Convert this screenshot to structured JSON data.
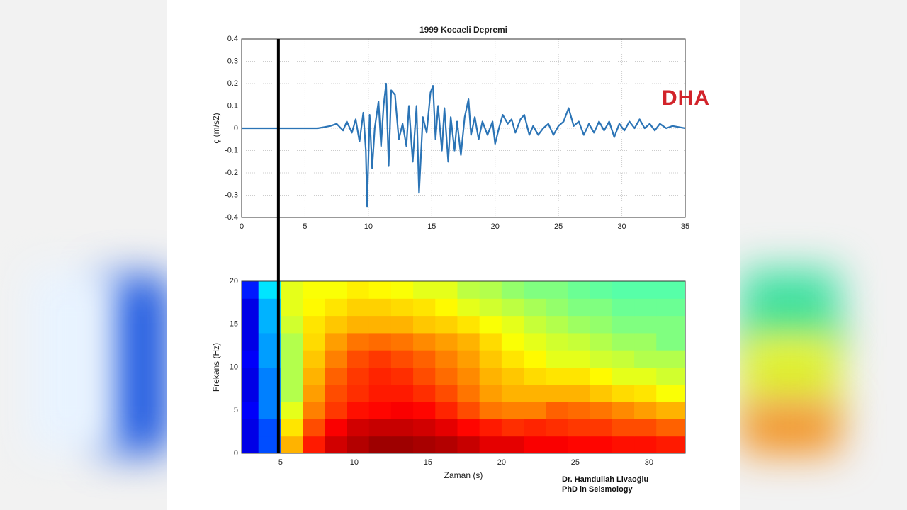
{
  "logo": "DHA",
  "credit": [
    "Dr. Hamdullah Livaoğlu",
    "PhD in Seismology"
  ],
  "chart_data": [
    {
      "type": "line",
      "title": "1999 Kocaeli Depremi",
      "ylabel": "ç (m/s2)",
      "color": "#2b74b6",
      "grid": true,
      "xlim": [
        0,
        35
      ],
      "xticks": [
        0,
        5,
        10,
        15,
        20,
        25,
        30,
        35
      ],
      "ylim": [
        -0.4,
        0.4
      ],
      "yticks": [
        -0.4,
        -0.3,
        -0.2,
        -0.1,
        0,
        0.1,
        0.2,
        0.3,
        0.4
      ],
      "cursor_x": 2.9,
      "x": [
        0,
        6,
        6.5,
        7,
        7.5,
        8,
        8.3,
        8.7,
        9,
        9.3,
        9.6,
        9.8,
        9.9,
        10.1,
        10.3,
        10.5,
        10.8,
        11,
        11.2,
        11.4,
        11.6,
        11.8,
        12.1,
        12.4,
        12.7,
        13,
        13.2,
        13.5,
        13.8,
        14,
        14.3,
        14.6,
        14.9,
        15.1,
        15.3,
        15.5,
        15.8,
        16,
        16.3,
        16.5,
        16.8,
        17,
        17.3,
        17.6,
        17.9,
        18.1,
        18.4,
        18.7,
        19,
        19.4,
        19.8,
        20,
        20.3,
        20.6,
        21,
        21.3,
        21.6,
        22,
        22.3,
        22.7,
        23,
        23.4,
        23.8,
        24.2,
        24.6,
        25,
        25.4,
        25.8,
        26.2,
        26.6,
        27,
        27.4,
        27.8,
        28.2,
        28.6,
        29,
        29.4,
        29.8,
        30.2,
        30.6,
        31,
        31.4,
        31.8,
        32.2,
        32.6,
        33,
        33.5,
        34,
        35
      ],
      "values": [
        0,
        0,
        0.005,
        0.01,
        0.02,
        -0.01,
        0.03,
        -0.02,
        0.04,
        -0.06,
        0.07,
        -0.1,
        -0.35,
        0.06,
        -0.18,
        0,
        0.12,
        -0.08,
        0.1,
        0.2,
        -0.17,
        0.17,
        0.15,
        -0.05,
        0.02,
        -0.08,
        0.1,
        -0.15,
        0.1,
        -0.29,
        0.05,
        -0.02,
        0.16,
        0.19,
        -0.05,
        0.1,
        -0.1,
        0.09,
        -0.15,
        0.05,
        -0.1,
        0.03,
        -0.12,
        0.05,
        0.13,
        -0.03,
        0.05,
        -0.05,
        0.03,
        -0.03,
        0.03,
        -0.07,
        0,
        0.06,
        0.02,
        0.04,
        -0.02,
        0.04,
        0.06,
        -0.03,
        0.01,
        -0.03,
        0,
        0.02,
        -0.03,
        0.01,
        0.03,
        0.09,
        0.01,
        0.03,
        -0.03,
        0.02,
        -0.02,
        0.03,
        -0.01,
        0.03,
        -0.04,
        0.02,
        -0.01,
        0.03,
        0,
        0.04,
        0,
        0.02,
        -0.01,
        0.02,
        0,
        0.01,
        0
      ]
    },
    {
      "type": "heatmap",
      "xlabel": "Zaman (s)",
      "ylabel": "Frekans (Hz)",
      "colormap": "jet",
      "xlim": [
        2.36,
        32.46
      ],
      "xticks": [
        5,
        10,
        15,
        20,
        25,
        30
      ],
      "ylim": [
        0,
        20
      ],
      "yticks": [
        0,
        5,
        10,
        15,
        20
      ],
      "zlim": [
        0,
        1
      ],
      "xbins": [
        2.36,
        3.5,
        5,
        6.5,
        8,
        9.5,
        11,
        12.5,
        14,
        15.5,
        17,
        18.5,
        20,
        21.5,
        23,
        24.5,
        26,
        27.5,
        29,
        30.5,
        32.46
      ],
      "ybins": [
        0,
        2,
        4,
        6,
        8,
        10,
        12,
        14,
        16,
        18,
        20
      ],
      "z": [
        [
          0.1,
          0.2,
          0.7,
          0.85,
          0.92,
          0.95,
          0.97,
          0.97,
          0.96,
          0.95,
          0.93,
          0.9,
          0.9,
          0.88,
          0.88,
          0.87,
          0.87,
          0.86,
          0.86,
          0.85
        ],
        [
          0.1,
          0.2,
          0.65,
          0.8,
          0.88,
          0.92,
          0.93,
          0.93,
          0.92,
          0.9,
          0.87,
          0.85,
          0.83,
          0.84,
          0.83,
          0.82,
          0.82,
          0.8,
          0.8,
          0.78
        ],
        [
          0.12,
          0.25,
          0.6,
          0.75,
          0.82,
          0.86,
          0.87,
          0.88,
          0.87,
          0.84,
          0.8,
          0.76,
          0.75,
          0.75,
          0.78,
          0.77,
          0.76,
          0.74,
          0.72,
          0.7
        ],
        [
          0.1,
          0.25,
          0.55,
          0.72,
          0.8,
          0.83,
          0.85,
          0.85,
          0.83,
          0.8,
          0.76,
          0.72,
          0.7,
          0.7,
          0.7,
          0.7,
          0.68,
          0.66,
          0.65,
          0.62
        ],
        [
          0.1,
          0.25,
          0.55,
          0.7,
          0.78,
          0.82,
          0.84,
          0.83,
          0.8,
          0.77,
          0.74,
          0.7,
          0.68,
          0.66,
          0.65,
          0.65,
          0.63,
          0.6,
          0.6,
          0.58
        ],
        [
          0.12,
          0.28,
          0.55,
          0.68,
          0.75,
          0.8,
          0.82,
          0.8,
          0.78,
          0.75,
          0.72,
          0.68,
          0.65,
          0.63,
          0.6,
          0.6,
          0.58,
          0.57,
          0.55,
          0.55
        ],
        [
          0.1,
          0.28,
          0.55,
          0.66,
          0.72,
          0.76,
          0.77,
          0.76,
          0.74,
          0.72,
          0.7,
          0.66,
          0.62,
          0.6,
          0.58,
          0.57,
          0.55,
          0.53,
          0.53,
          0.5
        ],
        [
          0.1,
          0.3,
          0.58,
          0.65,
          0.68,
          0.7,
          0.7,
          0.7,
          0.68,
          0.67,
          0.65,
          0.62,
          0.6,
          0.57,
          0.55,
          0.53,
          0.52,
          0.5,
          0.5,
          0.5
        ],
        [
          0.1,
          0.3,
          0.6,
          0.63,
          0.65,
          0.67,
          0.67,
          0.66,
          0.65,
          0.63,
          0.6,
          0.58,
          0.56,
          0.54,
          0.52,
          0.5,
          0.5,
          0.48,
          0.48,
          0.48
        ],
        [
          0.15,
          0.35,
          0.6,
          0.62,
          0.62,
          0.64,
          0.63,
          0.62,
          0.6,
          0.6,
          0.56,
          0.55,
          0.52,
          0.5,
          0.5,
          0.48,
          0.47,
          0.46,
          0.46,
          0.46
        ]
      ]
    }
  ]
}
